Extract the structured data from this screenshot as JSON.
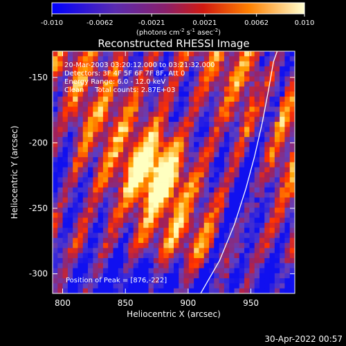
{
  "colorbar": {
    "ticks": [
      "-0.010",
      "-0.0062",
      "-0.0021",
      "0.0021",
      "0.0062",
      "0.010"
    ],
    "tick_values": [
      -0.01,
      -0.0062,
      -0.0021,
      0.0021,
      0.0062,
      0.01
    ],
    "range": [
      -0.01,
      0.01
    ],
    "unit_main": "(photons cm",
    "unit_exp1": "-2",
    "unit_mid": " s",
    "unit_exp2": "-1",
    "unit_tail": " asec",
    "unit_exp3": "-2",
    "unit_close": ")"
  },
  "chart_data": {
    "type": "heatmap",
    "title": "Reconstructed RHESSI Image",
    "xlabel": "Heliocentric X (arcsec)",
    "ylabel": "Heliocentric Y (arcsec)",
    "xlim": [
      792,
      985
    ],
    "ylim": [
      -315,
      -130
    ],
    "xticks": [
      800,
      850,
      900,
      950
    ],
    "yticks": [
      -150,
      -200,
      -250,
      -300
    ],
    "annotations": [
      "20-Mar-2003 03:20:12.000 to 03:21:32.000",
      "Detectors: 3F 4F 5F 6F 7F 8F, Att 0",
      "Energy Range: 6.0 - 12.0 keV",
      "Clean     Total counts: 2.87E+03"
    ],
    "peak_label": "Position of Peak = [876,-222]",
    "peak": [
      876,
      -222
    ],
    "limb_curve": [
      [
        910,
        -315
      ],
      [
        925,
        -290
      ],
      [
        937,
        -262
      ],
      [
        946,
        -235
      ],
      [
        953,
        -210
      ],
      [
        959,
        -185
      ],
      [
        964,
        -160
      ],
      [
        968,
        -138
      ],
      [
        971,
        -130
      ]
    ],
    "colormap": [
      "#1010f0",
      "#6040c0",
      "#a0205a",
      "#ff3000",
      "#ffa000",
      "#ffffc0"
    ]
  },
  "footer": {
    "date": "30-Apr-2022 00:57"
  }
}
